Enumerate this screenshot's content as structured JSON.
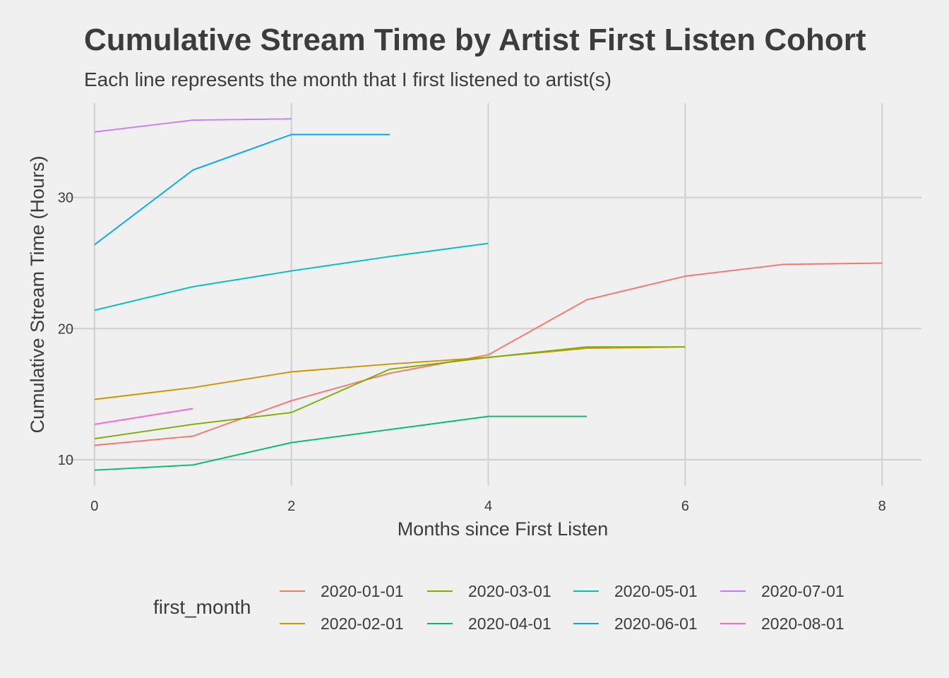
{
  "chart_data": {
    "type": "line",
    "title": "Cumulative Stream Time by Artist First Listen Cohort",
    "subtitle": "Each line represents the month that I first listened to artist(s)",
    "xlabel": "Months since First Listen",
    "ylabel": "Cumulative Stream Time (Hours)",
    "xlim": [
      -0.3,
      8.4
    ],
    "ylim": [
      8.0,
      37.2
    ],
    "x_ticks": [
      "0",
      "2",
      "4",
      "6",
      "8"
    ],
    "x_tick_values": [
      0,
      2,
      4,
      6,
      8
    ],
    "y_ticks": [
      "10",
      "20",
      "30"
    ],
    "y_tick_values": [
      10,
      20,
      30
    ],
    "grid": true,
    "legend_title": "first_month",
    "legend_position": "bottom",
    "series": [
      {
        "name": "2020-01-01",
        "color": "#F8766D",
        "x": [
          0,
          1,
          2,
          3,
          4,
          5,
          6,
          7,
          8
        ],
        "y": [
          11.1,
          11.8,
          14.5,
          16.6,
          18.0,
          22.2,
          24.0,
          24.9,
          25.0
        ]
      },
      {
        "name": "2020-02-01",
        "color": "#CD9600",
        "x": [
          0,
          1,
          2,
          3,
          4,
          5,
          6
        ],
        "y": [
          14.6,
          15.5,
          16.7,
          17.3,
          17.8,
          18.5,
          18.6
        ]
      },
      {
        "name": "2020-03-01",
        "color": "#7CAE00",
        "x": [
          0,
          1,
          2,
          3,
          4,
          5,
          6
        ],
        "y": [
          11.6,
          12.7,
          13.6,
          16.9,
          17.8,
          18.6,
          18.6
        ]
      },
      {
        "name": "2020-04-01",
        "color": "#00BE67",
        "x": [
          0,
          1,
          2,
          3,
          4,
          5
        ],
        "y": [
          9.2,
          9.6,
          11.3,
          12.3,
          13.3,
          13.3
        ]
      },
      {
        "name": "2020-05-01",
        "color": "#00BFC4",
        "x": [
          0,
          1,
          2,
          3,
          4
        ],
        "y": [
          21.4,
          23.2,
          24.4,
          25.5,
          26.5
        ]
      },
      {
        "name": "2020-06-01",
        "color": "#00A9FF",
        "x": [
          0,
          1,
          2,
          3
        ],
        "y": [
          26.4,
          32.1,
          34.8,
          34.8
        ]
      },
      {
        "name": "2020-07-01",
        "color": "#C77CFF",
        "x": [
          0,
          1,
          2
        ],
        "y": [
          35.0,
          35.9,
          36.0
        ]
      },
      {
        "name": "2020-08-01",
        "color": "#FF61CC",
        "x": [
          0,
          1
        ],
        "y": [
          12.7,
          13.9
        ]
      }
    ]
  }
}
